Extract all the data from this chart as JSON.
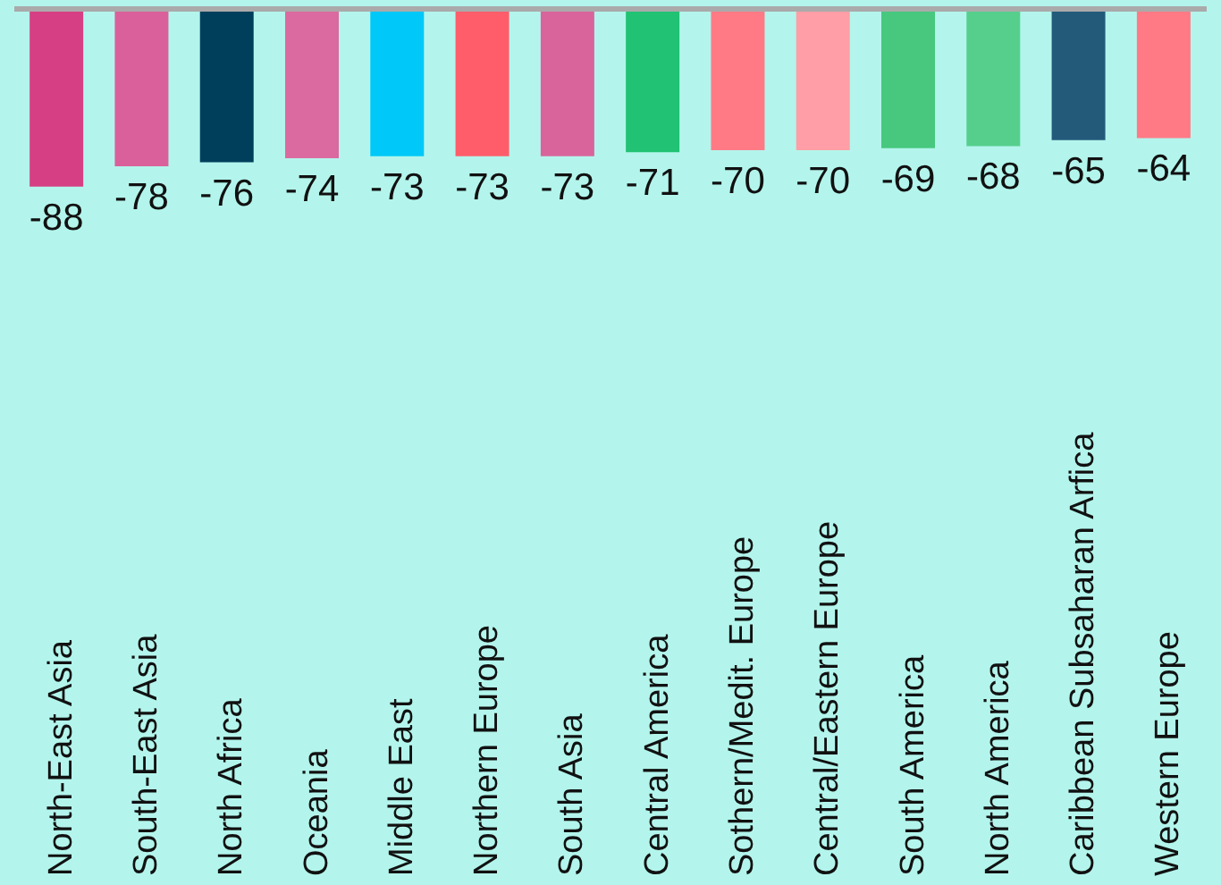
{
  "chart_data": {
    "type": "bar",
    "categories": [
      "North-East Asia",
      "South-East Asia",
      "North Africa",
      "Oceania",
      "Middle East",
      "Northern Europe",
      "South Asia",
      "Central America",
      "Sothern/Medit. Europe",
      "Central/Eastern Europe",
      "South America",
      "North America",
      "Caribbean Subsaharan Arfica",
      "Western Europe"
    ],
    "values": [
      -88,
      -78,
      -76,
      -74,
      -73,
      -73,
      -73,
      -71,
      -70,
      -70,
      -69,
      -68,
      -65,
      -64
    ],
    "colors": [
      "#d63f84",
      "#d9609a",
      "#003f5c",
      "#da6aa0",
      "#00c8f8",
      "#ff5d6a",
      "#d9649c",
      "#22c274",
      "#ff7a85",
      "#ff9ea6",
      "#47c87e",
      "#56cf8d",
      "#235a7a",
      "#ff7a85"
    ],
    "data_labels": true
  }
}
